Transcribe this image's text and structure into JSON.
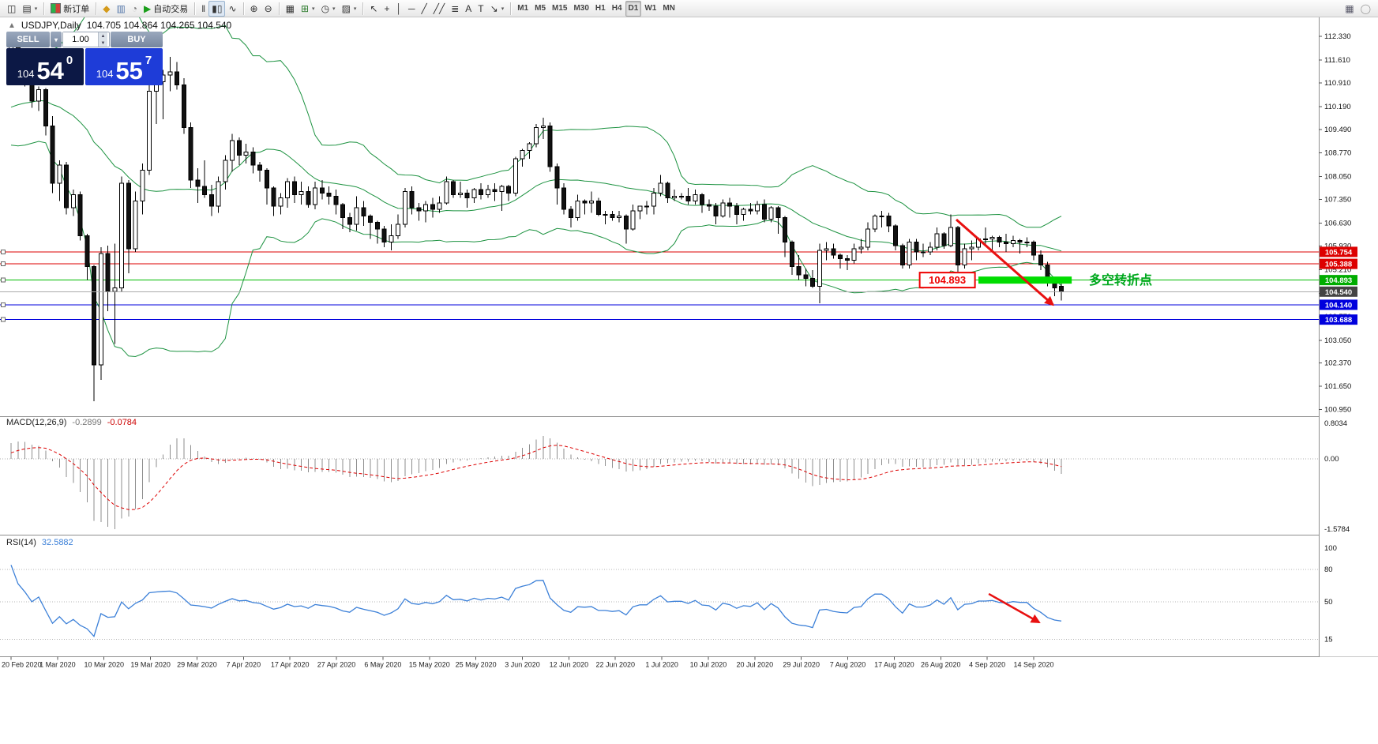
{
  "toolbar": {
    "groups": [
      [
        {
          "name": "new-chart",
          "glyph": "◫"
        },
        {
          "name": "profiles",
          "glyph": "▤",
          "caret": true
        }
      ],
      [
        {
          "name": "new-order",
          "swatch": true,
          "label": "新订单"
        }
      ],
      [
        {
          "name": "metaeditor",
          "glyph": "◆",
          "color": "#d49a1a"
        },
        {
          "name": "print",
          "glyph": "▥",
          "color": "#5577aa"
        },
        {
          "name": "history-center",
          "glyph": "◔",
          "color": "#777777"
        },
        {
          "name": "autotrading",
          "glyph": "▶",
          "color": "#1a9e1a",
          "label": "自动交易"
        }
      ],
      [
        {
          "name": "bars-chart",
          "glyph": "ǁ"
        },
        {
          "name": "candlestick-chart",
          "glyph": "▮▯",
          "active": true
        },
        {
          "name": "line-chart",
          "glyph": "∿"
        }
      ],
      [
        {
          "name": "zoom-in",
          "glyph": "⊕"
        },
        {
          "name": "zoom-out",
          "glyph": "⊖"
        }
      ],
      [
        {
          "name": "tile-windows",
          "glyph": "▦"
        },
        {
          "name": "indicators",
          "glyph": "⊞",
          "color": "#2a7a2a",
          "caret": true
        },
        {
          "name": "periods",
          "glyph": "◷",
          "caret": true
        },
        {
          "name": "templates",
          "glyph": "▨",
          "caret": true
        }
      ],
      [
        {
          "name": "cursor",
          "glyph": "↖"
        },
        {
          "name": "crosshair",
          "glyph": "+"
        },
        {
          "name": "vertical-line",
          "glyph": "│"
        },
        {
          "name": "horizontal-line",
          "glyph": "─"
        },
        {
          "name": "trendline",
          "glyph": "╱"
        },
        {
          "name": "equidistant-channel",
          "glyph": "╱╱"
        },
        {
          "name": "fibonacci",
          "glyph": "≣"
        },
        {
          "name": "text",
          "glyph": "A"
        },
        {
          "name": "text-label",
          "glyph": "T"
        },
        {
          "name": "arrows",
          "glyph": "↘",
          "caret": true
        }
      ]
    ],
    "timeframes": [
      "M1",
      "M5",
      "M15",
      "M30",
      "H1",
      "H4",
      "D1",
      "W1",
      "MN"
    ],
    "active_timeframe": "D1",
    "right": [
      {
        "name": "charts-grid",
        "glyph": "▦",
        "color": "#556"
      },
      {
        "name": "connection-status",
        "glyph": "◯",
        "color": "#999999"
      }
    ]
  },
  "chart": {
    "collapse_arrow": "▲",
    "title": "USDJPY,Daily",
    "ohlc_text": "104.705 104.864 104.265 104.540",
    "one_click": {
      "sell_label": "SELL",
      "buy_label": "BUY",
      "lot": "1.00",
      "sell_price": {
        "base": "104",
        "big": "54",
        "sup": "0"
      },
      "buy_price": {
        "base": "104",
        "big": "55",
        "sup": "7"
      },
      "sell_bg": "#0c1845",
      "buy_bg": "#1e3cd8"
    },
    "price_scale_ticks": [
      "112.330",
      "111.610",
      "110.910",
      "110.190",
      "109.490",
      "108.770",
      "108.050",
      "107.350",
      "106.630",
      "105.930",
      "105.210",
      "104.490",
      "103.770",
      "103.050",
      "102.370",
      "101.650",
      "100.950"
    ],
    "price_lines": [
      {
        "name": "resistance-line-1",
        "value": 105.754,
        "color": "#dd0000",
        "badge": "105.754",
        "badge_bg": "#dd0000"
      },
      {
        "name": "resistance-line-2",
        "value": 105.388,
        "color": "#dd0000",
        "badge": "105.388",
        "badge_bg": "#dd0000"
      },
      {
        "name": "pivot-line",
        "value": 104.893,
        "color": "#00bb00",
        "badge": "104.893",
        "badge_bg": "#00ad00"
      },
      {
        "name": "support-line-1",
        "value": 104.14,
        "color": "#0000dd",
        "badge": "104.140",
        "badge_bg": "#0000dd"
      },
      {
        "name": "support-line-2",
        "value": 103.688,
        "color": "#0000dd",
        "badge": "103.688",
        "badge_bg": "#0000dd"
      }
    ],
    "current_price": {
      "value": 104.54,
      "badge": "104.540",
      "line_color": "#aaaaaa",
      "badge_bg": "#444444"
    },
    "annotations": {
      "pivot_label": {
        "text": "104.893",
        "color": "#ee0000",
        "from_index": 131.5,
        "to_index": 139.5,
        "price": 104.893
      },
      "pivot_bar": {
        "from_index": 140,
        "to_index": 153.5,
        "price": 104.893,
        "color": "#00dd00"
      },
      "pivot_text": {
        "text": "多空转折点",
        "color": "#00a81e",
        "index": 156,
        "price": 104.893
      },
      "main_arrow": {
        "color": "#e81010",
        "from_index": 136.8,
        "from_price": 106.74,
        "to_index": 150.8,
        "to_price": 104.14
      },
      "rsi_arrow": {
        "color": "#e81010",
        "from_index": 141.5,
        "from_value": 57.4,
        "to_index": 148.8,
        "to_value": 30.9
      }
    },
    "time_labels": [
      "20 Feb 2020",
      "1 Mar 2020",
      "10 Mar 2020",
      "19 Mar 2020",
      "29 Mar 2020",
      "7 Apr 2020",
      "17 Apr 2020",
      "27 Apr 2020",
      "6 May 2020",
      "15 May 2020",
      "25 May 2020",
      "3 Jun 2020",
      "12 Jun 2020",
      "22 Jun 2020",
      "1 Jul 2020",
      "10 Jul 2020",
      "20 Jul 2020",
      "29 Jul 2020",
      "7 Aug 2020",
      "17 Aug 2020",
      "26 Aug 2020",
      "4 Sep 2020",
      "14 Sep 2020"
    ]
  },
  "indicators": {
    "macd": {
      "label": "MACD(12,26,9)",
      "values": [
        "-0.2899",
        "-0.0784"
      ],
      "value_colors": [
        "#777777",
        "#cc0000"
      ],
      "scale_max": "0.8034",
      "scale_zero": "0.00",
      "scale_min": "-1.5784",
      "histogram_color": "#8e8e8e",
      "signal_color": "#dd0000"
    },
    "rsi": {
      "label": "RSI(14)",
      "value_text": "32.5882",
      "value_color": "#3c80d8",
      "line_color": "#3c80d8",
      "levels": [
        "100",
        "80",
        "50",
        "15"
      ],
      "level_values": [
        100,
        80,
        50,
        15
      ],
      "dotted_levels": [
        80,
        50,
        15
      ]
    }
  },
  "chart_data": {
    "type": "candlestick",
    "symbol": "USDJPY",
    "timeframe": "Daily",
    "bull_color": "#ffffff",
    "bear_color": "#111111",
    "border_color": "#000000",
    "bollinger": {
      "period": 20,
      "deviation": 2,
      "color": "#1c9240"
    },
    "seed_closes": [
      109.85,
      109.9,
      109.75,
      109.8,
      109.9,
      110.0,
      109.9,
      109.85,
      110.05,
      110.15,
      109.95,
      109.9,
      109.8,
      109.85,
      109.95,
      110.1,
      110.3,
      111.0,
      111.3
    ],
    "candles": [
      [
        111.4,
        112.22,
        111.15,
        112.05
      ],
      [
        112.05,
        112.2,
        111.25,
        111.35
      ],
      [
        111.35,
        111.6,
        110.8,
        110.95
      ],
      [
        110.95,
        111.1,
        110.15,
        110.35
      ],
      [
        110.35,
        110.8,
        110.05,
        110.7
      ],
      [
        110.7,
        110.75,
        109.3,
        109.6
      ],
      [
        109.6,
        109.9,
        107.55,
        107.85
      ],
      [
        107.85,
        108.55,
        107.3,
        108.4
      ],
      [
        108.4,
        108.5,
        106.9,
        107.1
      ],
      [
        107.1,
        107.65,
        106.85,
        107.5
      ],
      [
        107.5,
        107.6,
        106.1,
        106.25
      ],
      [
        106.25,
        106.3,
        104.9,
        105.3
      ],
      [
        105.3,
        105.35,
        101.2,
        102.3
      ],
      [
        102.3,
        105.9,
        101.85,
        105.7
      ],
      [
        105.7,
        105.95,
        103.95,
        104.55
      ],
      [
        104.55,
        106.0,
        102.95,
        104.65
      ],
      [
        104.65,
        108.05,
        104.55,
        107.85
      ],
      [
        107.85,
        107.95,
        105.1,
        105.85
      ],
      [
        105.85,
        107.6,
        105.75,
        107.3
      ],
      [
        107.3,
        108.45,
        106.9,
        108.25
      ],
      [
        108.25,
        110.9,
        108.1,
        110.65
      ],
      [
        110.65,
        111.45,
        109.65,
        110.95
      ],
      [
        110.95,
        111.3,
        109.8,
        111.15
      ],
      [
        111.15,
        111.7,
        110.65,
        111.25
      ],
      [
        111.25,
        111.55,
        110.7,
        110.85
      ],
      [
        110.85,
        111.05,
        109.35,
        109.55
      ],
      [
        109.55,
        109.7,
        107.7,
        107.95
      ],
      [
        107.95,
        108.3,
        107.25,
        107.75
      ],
      [
        107.75,
        108.55,
        107.4,
        107.5
      ],
      [
        107.5,
        107.8,
        106.85,
        107.15
      ],
      [
        107.15,
        108.05,
        106.95,
        107.9
      ],
      [
        107.9,
        108.7,
        107.65,
        108.55
      ],
      [
        108.55,
        109.35,
        108.2,
        109.15
      ],
      [
        109.15,
        109.25,
        108.4,
        108.7
      ],
      [
        108.7,
        109.05,
        108.45,
        108.8
      ],
      [
        108.8,
        108.95,
        108.15,
        108.4
      ],
      [
        108.4,
        108.5,
        107.9,
        108.25
      ],
      [
        108.25,
        108.3,
        107.2,
        107.7
      ],
      [
        107.7,
        107.75,
        106.85,
        107.15
      ],
      [
        107.15,
        107.55,
        106.9,
        107.4
      ],
      [
        107.4,
        108.0,
        107.1,
        107.9
      ],
      [
        107.9,
        108.05,
        107.25,
        107.5
      ],
      [
        107.5,
        107.9,
        107.2,
        107.6
      ],
      [
        107.6,
        107.75,
        107.1,
        107.2
      ],
      [
        107.2,
        107.9,
        107.05,
        107.7
      ],
      [
        107.7,
        107.95,
        107.35,
        107.55
      ],
      [
        107.55,
        107.75,
        107.2,
        107.45
      ],
      [
        107.45,
        107.65,
        106.9,
        107.2
      ],
      [
        107.2,
        107.25,
        106.45,
        106.8
      ],
      [
        106.8,
        106.95,
        106.35,
        106.6
      ],
      [
        106.6,
        107.45,
        106.4,
        107.1
      ],
      [
        107.1,
        107.3,
        106.55,
        106.85
      ],
      [
        106.85,
        106.9,
        106.15,
        106.65
      ],
      [
        106.65,
        106.7,
        106.0,
        106.45
      ],
      [
        106.45,
        106.55,
        105.9,
        106.05
      ],
      [
        106.05,
        106.6,
        105.8,
        106.25
      ],
      [
        106.25,
        106.9,
        106.15,
        106.6
      ],
      [
        106.6,
        107.7,
        106.5,
        107.6
      ],
      [
        107.6,
        107.75,
        106.9,
        107.1
      ],
      [
        107.1,
        107.25,
        106.7,
        107.0
      ],
      [
        107.0,
        107.3,
        106.65,
        107.2
      ],
      [
        107.2,
        107.4,
        106.8,
        107.05
      ],
      [
        107.05,
        107.45,
        106.95,
        107.25
      ],
      [
        107.25,
        108.05,
        107.2,
        107.9
      ],
      [
        107.9,
        107.95,
        107.4,
        107.5
      ],
      [
        107.5,
        107.9,
        107.4,
        107.55
      ],
      [
        107.55,
        107.65,
        107.1,
        107.4
      ],
      [
        107.4,
        107.7,
        107.25,
        107.65
      ],
      [
        107.65,
        107.85,
        107.35,
        107.5
      ],
      [
        107.5,
        107.8,
        107.4,
        107.65
      ],
      [
        107.65,
        107.85,
        107.3,
        107.6
      ],
      [
        107.6,
        107.8,
        107.0,
        107.75
      ],
      [
        107.75,
        107.8,
        107.3,
        107.55
      ],
      [
        107.55,
        108.65,
        107.45,
        108.6
      ],
      [
        108.6,
        108.9,
        108.35,
        108.85
      ],
      [
        108.85,
        109.1,
        108.6,
        109.05
      ],
      [
        109.05,
        109.65,
        108.95,
        109.55
      ],
      [
        109.55,
        109.85,
        109.2,
        109.6
      ],
      [
        109.6,
        109.7,
        108.2,
        108.35
      ],
      [
        108.35,
        108.45,
        107.2,
        107.7
      ],
      [
        107.7,
        107.85,
        106.9,
        107.05
      ],
      [
        107.05,
        107.15,
        106.5,
        106.8
      ],
      [
        106.8,
        107.5,
        106.7,
        107.3
      ],
      [
        107.3,
        107.35,
        106.9,
        107.25
      ],
      [
        107.25,
        107.6,
        106.95,
        107.3
      ],
      [
        107.3,
        107.4,
        106.85,
        106.9
      ],
      [
        106.9,
        107.0,
        106.6,
        106.9
      ],
      [
        106.9,
        107.0,
        106.7,
        106.8
      ],
      [
        106.8,
        107.0,
        106.65,
        106.85
      ],
      [
        106.85,
        106.9,
        106.0,
        106.45
      ],
      [
        106.45,
        107.2,
        106.4,
        107.0
      ],
      [
        107.0,
        107.15,
        106.75,
        107.15
      ],
      [
        107.15,
        107.3,
        106.9,
        107.15
      ],
      [
        107.15,
        107.7,
        106.9,
        107.55
      ],
      [
        107.55,
        108.1,
        107.45,
        107.85
      ],
      [
        107.85,
        107.9,
        107.25,
        107.4
      ],
      [
        107.4,
        107.65,
        107.3,
        107.45
      ],
      [
        107.45,
        107.55,
        107.35,
        107.45
      ],
      [
        107.45,
        107.7,
        107.2,
        107.3
      ],
      [
        107.3,
        107.65,
        107.2,
        107.5
      ],
      [
        107.5,
        107.55,
        106.95,
        107.2
      ],
      [
        107.2,
        107.35,
        107.0,
        107.15
      ],
      [
        107.15,
        107.25,
        106.6,
        106.85
      ],
      [
        106.85,
        107.35,
        106.8,
        107.25
      ],
      [
        107.25,
        107.4,
        106.8,
        107.15
      ],
      [
        107.15,
        107.25,
        106.6,
        106.9
      ],
      [
        106.9,
        107.1,
        106.7,
        107.05
      ],
      [
        107.05,
        107.25,
        106.9,
        107.0
      ],
      [
        107.0,
        107.3,
        106.9,
        107.2
      ],
      [
        107.2,
        107.35,
        106.65,
        106.75
      ],
      [
        106.75,
        107.15,
        106.65,
        107.1
      ],
      [
        107.1,
        107.15,
        106.3,
        106.8
      ],
      [
        106.8,
        106.85,
        105.6,
        106.05
      ],
      [
        106.05,
        106.1,
        105.05,
        105.3
      ],
      [
        105.3,
        105.65,
        104.9,
        105.05
      ],
      [
        105.05,
        105.25,
        104.7,
        104.95
      ],
      [
        104.95,
        105.2,
        104.65,
        104.7
      ],
      [
        104.7,
        106.0,
        104.19,
        105.8
      ],
      [
        105.8,
        106.05,
        105.5,
        105.85
      ],
      [
        105.85,
        106.0,
        105.55,
        105.65
      ],
      [
        105.65,
        105.7,
        105.25,
        105.55
      ],
      [
        105.55,
        105.65,
        105.2,
        105.5
      ],
      [
        105.5,
        106.0,
        105.4,
        105.85
      ],
      [
        105.85,
        106.15,
        105.7,
        105.9
      ],
      [
        105.9,
        106.65,
        105.8,
        106.45
      ],
      [
        106.45,
        106.9,
        106.35,
        106.85
      ],
      [
        106.85,
        107.0,
        106.5,
        106.85
      ],
      [
        106.85,
        106.95,
        106.35,
        106.55
      ],
      [
        106.55,
        106.6,
        105.8,
        105.95
      ],
      [
        105.95,
        106.0,
        105.25,
        105.35
      ],
      [
        105.35,
        106.15,
        105.25,
        106.05
      ],
      [
        106.05,
        106.15,
        105.5,
        105.75
      ],
      [
        105.75,
        106.0,
        105.6,
        105.75
      ],
      [
        105.75,
        106.05,
        105.65,
        105.9
      ],
      [
        105.9,
        106.5,
        105.8,
        106.3
      ],
      [
        106.3,
        106.35,
        105.85,
        105.95
      ],
      [
        105.95,
        106.9,
        105.9,
        106.5
      ],
      [
        106.5,
        106.55,
        105.15,
        105.35
      ],
      [
        105.35,
        106.0,
        105.25,
        105.85
      ],
      [
        105.85,
        106.1,
        105.5,
        105.9
      ],
      [
        105.9,
        106.2,
        105.8,
        106.15
      ],
      [
        106.15,
        106.5,
        106.0,
        106.15
      ],
      [
        106.15,
        106.25,
        105.75,
        106.2
      ],
      [
        106.2,
        106.25,
        105.9,
        106.05
      ],
      [
        106.05,
        106.3,
        105.75,
        106.0
      ],
      [
        106.0,
        106.25,
        105.9,
        106.1
      ],
      [
        106.1,
        106.15,
        105.7,
        106.05
      ],
      [
        106.05,
        106.2,
        105.9,
        106.05
      ],
      [
        106.05,
        106.1,
        105.5,
        105.65
      ],
      [
        105.65,
        105.8,
        105.2,
        105.35
      ],
      [
        105.35,
        105.45,
        104.7,
        104.9
      ],
      [
        104.9,
        104.95,
        104.4,
        104.65
      ],
      [
        104.705,
        104.864,
        104.265,
        104.54
      ]
    ]
  }
}
